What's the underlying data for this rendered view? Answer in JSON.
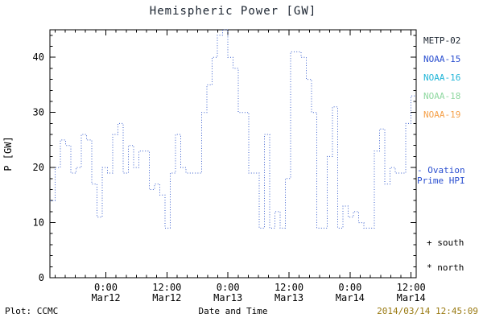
{
  "chart_data": {
    "type": "line",
    "style": "steps-dotted",
    "title": "Hemispheric Power [GW]",
    "xlabel": "Date and Time",
    "ylabel": "P [GW]",
    "ylim": [
      0,
      45
    ],
    "xlim_hours": [
      0,
      72
    ],
    "y_ticks": [
      0,
      10,
      20,
      30,
      40
    ],
    "y_minor_step": 2,
    "x_tick_hours": [
      11,
      23,
      35,
      47,
      59,
      71
    ],
    "x_tick_labels": [
      [
        "0:00",
        "Mar12"
      ],
      [
        "12:00",
        "Mar12"
      ],
      [
        "0:00",
        "Mar13"
      ],
      [
        "12:00",
        "Mar13"
      ],
      [
        "0:00",
        "Mar14"
      ],
      [
        "12:00",
        "Mar14"
      ]
    ],
    "x_minor_step_hours": 2,
    "grid": false,
    "line_color": "#3a5fcd",
    "axis_color": "#000000",
    "legend_position": "right",
    "series": [
      {
        "name": "Ovation Prime HPI",
        "values": [
          14,
          20,
          25,
          24,
          19,
          20,
          26,
          25,
          17,
          11,
          20,
          19,
          26,
          28,
          19,
          24,
          20,
          23,
          23,
          16,
          17,
          15,
          9,
          19,
          26,
          20,
          19,
          19,
          19,
          30,
          35,
          40,
          44,
          45,
          40,
          38,
          30,
          30,
          19,
          19,
          9,
          26,
          9,
          12,
          9,
          18,
          41,
          41,
          40,
          36,
          30,
          9,
          9,
          22,
          31,
          9,
          13,
          11,
          12,
          10,
          9,
          9,
          23,
          27,
          17,
          20,
          19,
          19,
          28,
          33
        ]
      }
    ]
  },
  "legend": {
    "satellites": [
      {
        "label": "METP-02",
        "color": "#1b2430"
      },
      {
        "label": "NOAA-15",
        "color": "#2a4fd0"
      },
      {
        "label": "NOAA-16",
        "color": "#23b6d8"
      },
      {
        "label": "NOAA-18",
        "color": "#8fd8a0"
      },
      {
        "label": "NOAA-19",
        "color": "#f5a14b"
      }
    ],
    "ovation_line1": "- Ovation",
    "ovation_line2": "Prime HPI",
    "ovation_color": "#2a4fd0",
    "south_marker": "+ south",
    "north_marker": "* north"
  },
  "footer": {
    "plot_credit": "Plot: CCMC",
    "timestamp": "2014/03/14 12:45:09",
    "timestamp_color": "#9a7a12"
  }
}
